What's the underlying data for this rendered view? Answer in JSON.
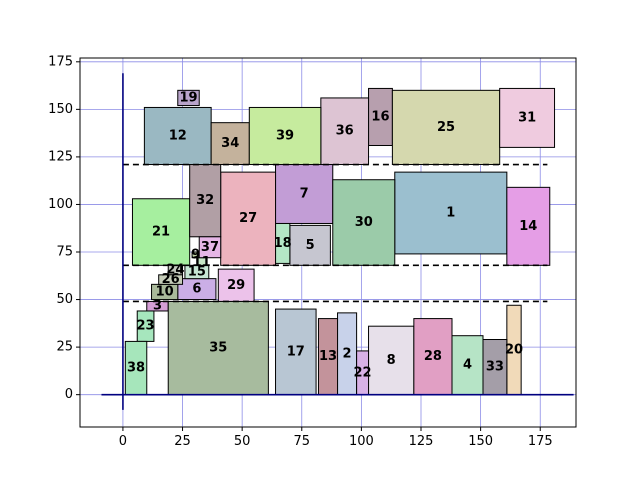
{
  "chart_data": {
    "type": "rectangle-packing",
    "title": "",
    "xlabel": "",
    "ylabel": "",
    "xlim": [
      -18,
      190
    ],
    "ylim": [
      -17,
      177
    ],
    "xticks": [
      0,
      25,
      50,
      75,
      100,
      125,
      150,
      175
    ],
    "yticks": [
      0,
      25,
      50,
      75,
      100,
      125,
      150,
      175
    ],
    "grid": true,
    "grid_color": "#8c8ce6",
    "axis_line_color": "#000000",
    "guide_lines": {
      "horizontal_dashed": [
        {
          "y": 121,
          "x0": 0,
          "x1": 178
        },
        {
          "y": 68,
          "x0": 0,
          "x1": 178
        },
        {
          "y": 49,
          "x0": 0,
          "x1": 178
        }
      ],
      "vertical_solid": {
        "x": 0,
        "y0": -8,
        "y1": 169
      },
      "horizontal_solid": {
        "y": 0,
        "x0": -9,
        "x1": 189
      }
    },
    "rects": [
      {
        "label": "1",
        "x0": 114,
        "y0": 74,
        "x1": 161,
        "y1": 117,
        "color": "#9bbfcf"
      },
      {
        "label": "2",
        "x0": 90,
        "y0": 0,
        "x1": 98,
        "y1": 43,
        "color": "#c8d2ea"
      },
      {
        "label": "3",
        "x0": 10,
        "y0": 44,
        "x1": 19,
        "y1": 49,
        "color": "#d59ed6"
      },
      {
        "label": "4",
        "x0": 138,
        "y0": 0,
        "x1": 151,
        "y1": 31,
        "color": "#b6e4c6"
      },
      {
        "label": "5",
        "x0": 70,
        "y0": 68,
        "x1": 87,
        "y1": 89,
        "color": "#c6c6d0"
      },
      {
        "label": "6",
        "x0": 23,
        "y0": 50,
        "x1": 39,
        "y1": 61,
        "color": "#cbaee6"
      },
      {
        "label": "7",
        "x0": 64,
        "y0": 90,
        "x1": 88,
        "y1": 121,
        "color": "#c29dd6"
      },
      {
        "label": "8",
        "x0": 103,
        "y0": 0,
        "x1": 122,
        "y1": 36,
        "color": "#e7e0ea"
      },
      {
        "label": "9",
        "x0": 29,
        "y0": 72,
        "x1": 32,
        "y1": 75,
        "color": "#c0d3a6"
      },
      {
        "label": "10",
        "x0": 12,
        "y0": 50,
        "x1": 23,
        "y1": 58,
        "color": "#a9b99a"
      },
      {
        "label": "11",
        "x0": 31,
        "y0": 67,
        "x1": 35,
        "y1": 72,
        "color": "#c6e6c6"
      },
      {
        "label": "12",
        "x0": 9,
        "y0": 121,
        "x1": 37,
        "y1": 151,
        "color": "#9ab8c2"
      },
      {
        "label": "13",
        "x0": 82,
        "y0": 0,
        "x1": 90,
        "y1": 40,
        "color": "#c3939b"
      },
      {
        "label": "14",
        "x0": 161,
        "y0": 68,
        "x1": 179,
        "y1": 109,
        "color": "#e59ee6"
      },
      {
        "label": "15",
        "x0": 26,
        "y0": 61,
        "x1": 36,
        "y1": 68,
        "color": "#c6e6d4"
      },
      {
        "label": "16",
        "x0": 103,
        "y0": 131,
        "x1": 113,
        "y1": 161,
        "color": "#b79fae"
      },
      {
        "label": "17",
        "x0": 64,
        "y0": 0,
        "x1": 81,
        "y1": 45,
        "color": "#b8c6d3"
      },
      {
        "label": "18",
        "x0": 64,
        "y0": 69,
        "x1": 70,
        "y1": 90,
        "color": "#b4e6c6"
      },
      {
        "label": "19",
        "x0": 23,
        "y0": 152,
        "x1": 32,
        "y1": 160,
        "color": "#b9a4cb"
      },
      {
        "label": "20",
        "x0": 161,
        "y0": 0,
        "x1": 167,
        "y1": 47,
        "color": "#f1dab9"
      },
      {
        "label": "21",
        "x0": 4,
        "y0": 68,
        "x1": 28,
        "y1": 103,
        "color": "#a6ef9f"
      },
      {
        "label": "22",
        "x0": 98,
        "y0": 0,
        "x1": 103,
        "y1": 23,
        "color": "#d8b1e6"
      },
      {
        "label": "23",
        "x0": 6,
        "y0": 28,
        "x1": 13,
        "y1": 44,
        "color": "#a6e6bd"
      },
      {
        "label": "24",
        "x0": 19,
        "y0": 63,
        "x1": 25,
        "y1": 68,
        "color": "#c3c8bd"
      },
      {
        "label": "25",
        "x0": 113,
        "y0": 121,
        "x1": 158,
        "y1": 160,
        "color": "#d5d8ae"
      },
      {
        "label": "26",
        "x0": 15,
        "y0": 58,
        "x1": 25,
        "y1": 63,
        "color": "#c6cdb9"
      },
      {
        "label": "27",
        "x0": 41,
        "y0": 68,
        "x1": 64,
        "y1": 117,
        "color": "#ecb3be"
      },
      {
        "label": "28",
        "x0": 122,
        "y0": 0,
        "x1": 138,
        "y1": 40,
        "color": "#e19fc4"
      },
      {
        "label": "29",
        "x0": 40,
        "y0": 49,
        "x1": 55,
        "y1": 66,
        "color": "#ecc2ea"
      },
      {
        "label": "30",
        "x0": 88,
        "y0": 68,
        "x1": 114,
        "y1": 113,
        "color": "#9bcba9"
      },
      {
        "label": "31",
        "x0": 158,
        "y0": 130,
        "x1": 181,
        "y1": 161,
        "color": "#efcbdf"
      },
      {
        "label": "32",
        "x0": 28,
        "y0": 83,
        "x1": 41,
        "y1": 121,
        "color": "#b19fa5"
      },
      {
        "label": "33",
        "x0": 151,
        "y0": 0,
        "x1": 161,
        "y1": 29,
        "color": "#a49ea8"
      },
      {
        "label": "34",
        "x0": 37,
        "y0": 121,
        "x1": 53,
        "y1": 143,
        "color": "#c4b29c"
      },
      {
        "label": "35",
        "x0": 19,
        "y0": 0,
        "x1": 61,
        "y1": 49,
        "color": "#a7bb9e"
      },
      {
        "label": "36",
        "x0": 83,
        "y0": 121,
        "x1": 103,
        "y1": 156,
        "color": "#ddc4d3"
      },
      {
        "label": "37",
        "x0": 32,
        "y0": 72,
        "x1": 41,
        "y1": 83,
        "color": "#e5b6e6"
      },
      {
        "label": "38",
        "x0": 1,
        "y0": 0,
        "x1": 10,
        "y1": 28,
        "color": "#a6e6bb"
      },
      {
        "label": "39",
        "x0": 53,
        "y0": 121,
        "x1": 83,
        "y1": 151,
        "color": "#c6eb9e"
      }
    ]
  }
}
